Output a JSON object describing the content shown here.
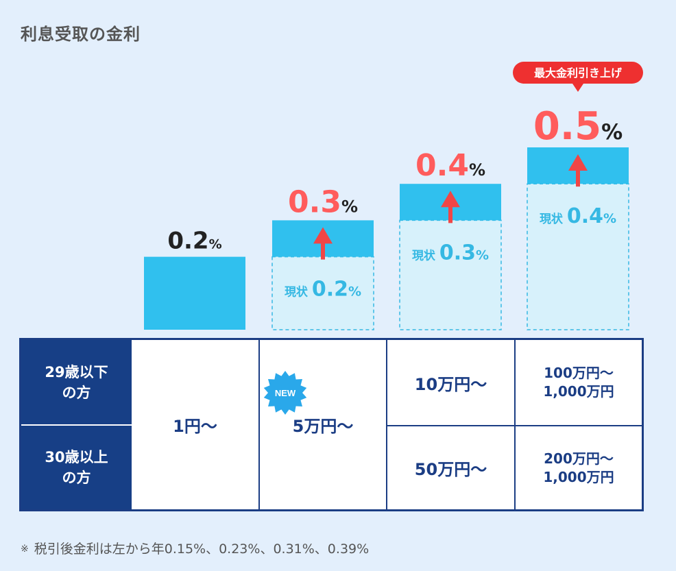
{
  "title": "利息受取の金利",
  "chart_data": {
    "type": "bar",
    "unit": "%",
    "ylim": [
      0,
      0.55
    ],
    "current_label": "現状",
    "columns": [
      {
        "new": 0.2,
        "current": null,
        "new_label": "0.2",
        "current_label": null
      },
      {
        "new": 0.3,
        "current": 0.2,
        "new_label": "0.3",
        "current_label": "0.2"
      },
      {
        "new": 0.4,
        "current": 0.3,
        "new_label": "0.4",
        "current_label": "0.3"
      },
      {
        "new": 0.5,
        "current": 0.4,
        "new_label": "0.5",
        "current_label": "0.4"
      }
    ],
    "highlight_badge": "最大金利引き上げ",
    "colors": {
      "bar": "#30c0ee",
      "current_fill": "#d7f1fb",
      "current_border": "#35b8e3",
      "raised_text": "#ff5c5c",
      "base_text": "#222222",
      "arrow": "#f04646",
      "badge": "#ee3030"
    }
  },
  "table": {
    "row_headers": [
      {
        "line1": "29歳以下",
        "line2": "の方"
      },
      {
        "line1": "30歳以上",
        "line2": "の方"
      }
    ],
    "col1": "1円〜",
    "col2": "5万円〜",
    "new_badge": "NEW",
    "col3": {
      "top": "10万円〜",
      "bottom": "50万円〜"
    },
    "col4": {
      "top": {
        "line1": "100万円〜",
        "line2": "1,000万円"
      },
      "bottom": {
        "line1": "200万円〜",
        "line2": "1,000万円"
      }
    }
  },
  "note": {
    "mark": "※",
    "text": "税引後金利は左から年0.15%、0.23%、0.31%、0.39%"
  }
}
